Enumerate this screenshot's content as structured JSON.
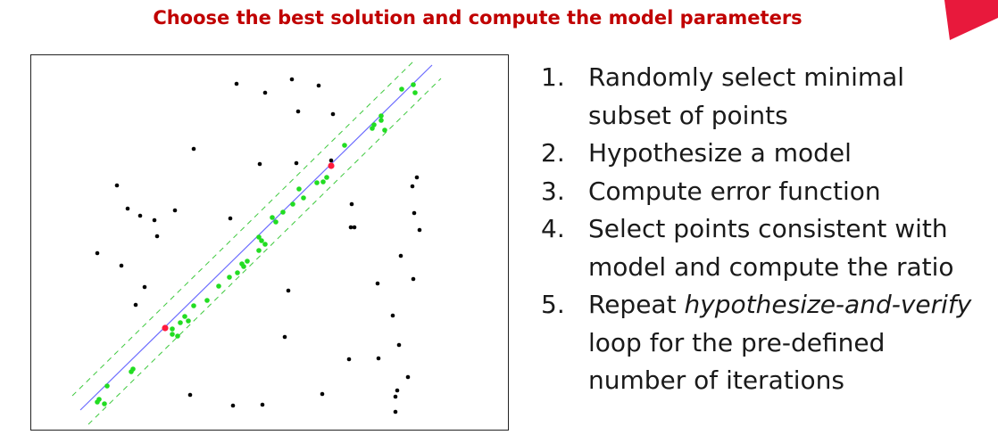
{
  "title": "Choose the best solution and compute the model parameters",
  "accent_color": "#c00000",
  "corner_tab_color": "#e8193c",
  "steps": [
    {
      "number": "1.",
      "line1": "Randomly select minimal",
      "line2": "subset of points"
    },
    {
      "number": "2.",
      "line1": "Hypothesize a model"
    },
    {
      "number": "3.",
      "line1": "Compute error function"
    },
    {
      "number": "4.",
      "line1": "Select points consistent with",
      "line2": "model and compute the ratio"
    },
    {
      "number": "5.",
      "line1_prefix": "Repeat ",
      "line1_emph": "hypothesize-and-verify",
      "line2": "loop for the pre-defined",
      "line3": "number of iterations"
    }
  ],
  "figure": {
    "model_line_color": "#6b6bff",
    "band_color": "#3ec93e",
    "inlier_color": "#22dd22",
    "outlier_color": "#000000",
    "sample_color": "#ff1a3c"
  }
}
